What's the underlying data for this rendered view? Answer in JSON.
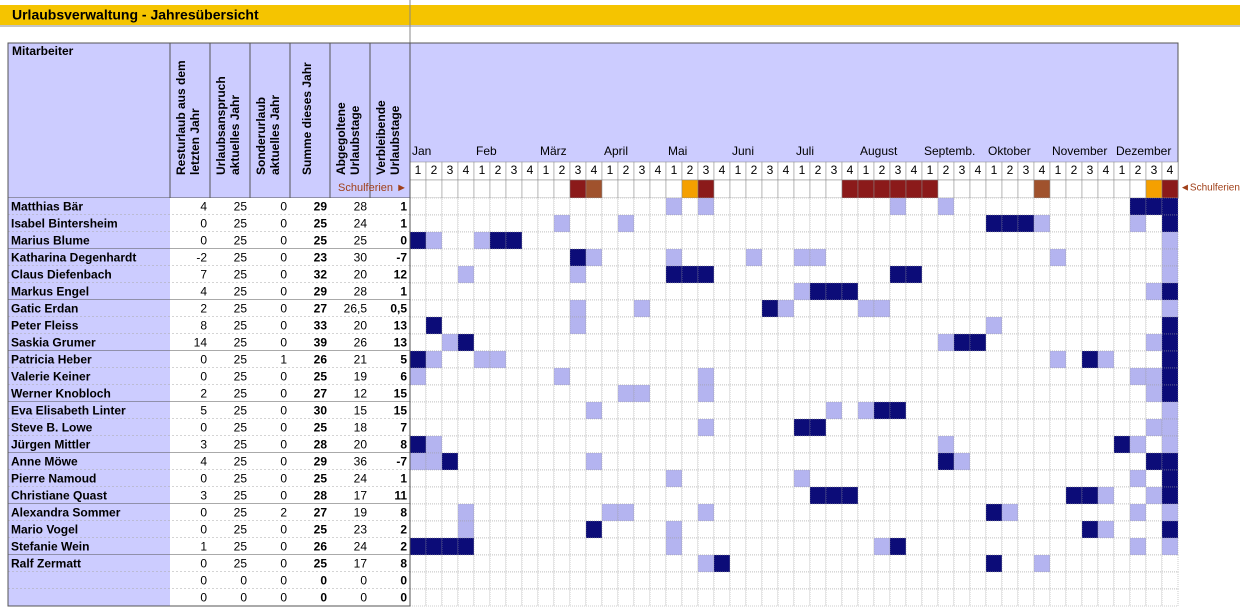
{
  "header": {
    "title": "Urlaubsverwaltung - Jahresübersicht"
  },
  "table": {
    "name_header": "Mitarbeiter",
    "column_headers": [
      [
        "Resturlaub aus dem",
        "letzten Jahr"
      ],
      [
        "Urlaubsanspruch",
        "aktuelles Jahr"
      ],
      [
        "Sonderurlaub",
        "aktuelles Jahr"
      ],
      [
        "Summe dieses Jahr"
      ],
      [
        "Abgegoltene",
        "Urlaubstage"
      ],
      [
        "Verbleibende",
        "Urlaubstage"
      ]
    ],
    "holiday_label_left": "Schulferien ►",
    "holiday_label_right": "◄Schulferien",
    "months": [
      {
        "name": "Jan",
        "weeks": [
          1,
          2,
          3,
          4
        ]
      },
      {
        "name": "Feb",
        "weeks": [
          1,
          2,
          3,
          4
        ]
      },
      {
        "name": "März",
        "weeks": [
          1,
          2,
          3,
          4
        ]
      },
      {
        "name": "April",
        "weeks": [
          1,
          2,
          3,
          4
        ]
      },
      {
        "name": "Mai",
        "weeks": [
          1,
          2,
          3,
          4
        ]
      },
      {
        "name": "Juni",
        "weeks": [
          1,
          2,
          3,
          4
        ]
      },
      {
        "name": "Juli",
        "weeks": [
          1,
          2,
          3,
          4
        ]
      },
      {
        "name": "August",
        "weeks": [
          1,
          2,
          3,
          4
        ]
      },
      {
        "name": "Septemb.",
        "weeks": [
          1,
          2,
          3,
          4
        ]
      },
      {
        "name": "Oktober",
        "weeks": [
          1,
          2,
          3,
          4
        ]
      },
      {
        "name": "November",
        "weeks": [
          1,
          2,
          3,
          4
        ]
      },
      {
        "name": "Dezember",
        "weeks": [
          1,
          2,
          3,
          4
        ]
      }
    ],
    "rows": [
      {
        "name": "Matthias Bär",
        "values": [
          4,
          25,
          0,
          29,
          28,
          1
        ]
      },
      {
        "name": "Isabel Bintersheim",
        "values": [
          0,
          25,
          0,
          25,
          24,
          1
        ]
      },
      {
        "name": "Marius Blume",
        "values": [
          0,
          25,
          0,
          25,
          25,
          0
        ]
      },
      {
        "name": "Katharina Degenhardt",
        "values": [
          -2,
          25,
          0,
          23,
          30,
          -7
        ]
      },
      {
        "name": "Claus Diefenbach",
        "values": [
          7,
          25,
          0,
          32,
          20,
          12
        ]
      },
      {
        "name": "Markus Engel",
        "values": [
          4,
          25,
          0,
          29,
          28,
          1
        ]
      },
      {
        "name": "Gatic Erdan",
        "values": [
          2,
          25,
          0,
          27,
          "26,5",
          "0,5"
        ]
      },
      {
        "name": "Peter Fleiss",
        "values": [
          8,
          25,
          0,
          33,
          20,
          13
        ]
      },
      {
        "name": "Saskia Grumer",
        "values": [
          14,
          25,
          0,
          39,
          26,
          13
        ]
      },
      {
        "name": "Patricia Heber",
        "values": [
          0,
          25,
          1,
          26,
          21,
          5
        ]
      },
      {
        "name": "Valerie Keiner",
        "values": [
          0,
          25,
          0,
          25,
          19,
          6
        ]
      },
      {
        "name": "Werner Knobloch",
        "values": [
          2,
          25,
          0,
          27,
          12,
          15
        ]
      },
      {
        "name": "Eva Elisabeth Linter",
        "values": [
          5,
          25,
          0,
          30,
          15,
          15
        ]
      },
      {
        "name": "Steve B. Lowe",
        "values": [
          0,
          25,
          0,
          25,
          18,
          7
        ]
      },
      {
        "name": "Jürgen Mittler",
        "values": [
          3,
          25,
          0,
          28,
          20,
          8
        ]
      },
      {
        "name": "Anne Möwe",
        "values": [
          4,
          25,
          0,
          29,
          36,
          -7
        ]
      },
      {
        "name": "Pierre Namoud",
        "values": [
          0,
          25,
          0,
          25,
          24,
          1
        ]
      },
      {
        "name": "Christiane Quast",
        "values": [
          3,
          25,
          0,
          28,
          17,
          11
        ]
      },
      {
        "name": "Alexandra Sommer",
        "values": [
          0,
          25,
          2,
          27,
          19,
          8
        ]
      },
      {
        "name": "Mario Vogel",
        "values": [
          0,
          25,
          0,
          25,
          23,
          2
        ]
      },
      {
        "name": "Stefanie Wein",
        "values": [
          1,
          25,
          0,
          26,
          24,
          2
        ]
      },
      {
        "name": "Ralf Zermatt",
        "values": [
          0,
          25,
          0,
          25,
          17,
          8
        ]
      },
      {
        "name": null,
        "values": [
          0,
          0,
          0,
          0,
          0,
          0
        ]
      },
      {
        "name": null,
        "values": [
          0,
          0,
          0,
          0,
          0,
          0
        ]
      }
    ]
  }
}
